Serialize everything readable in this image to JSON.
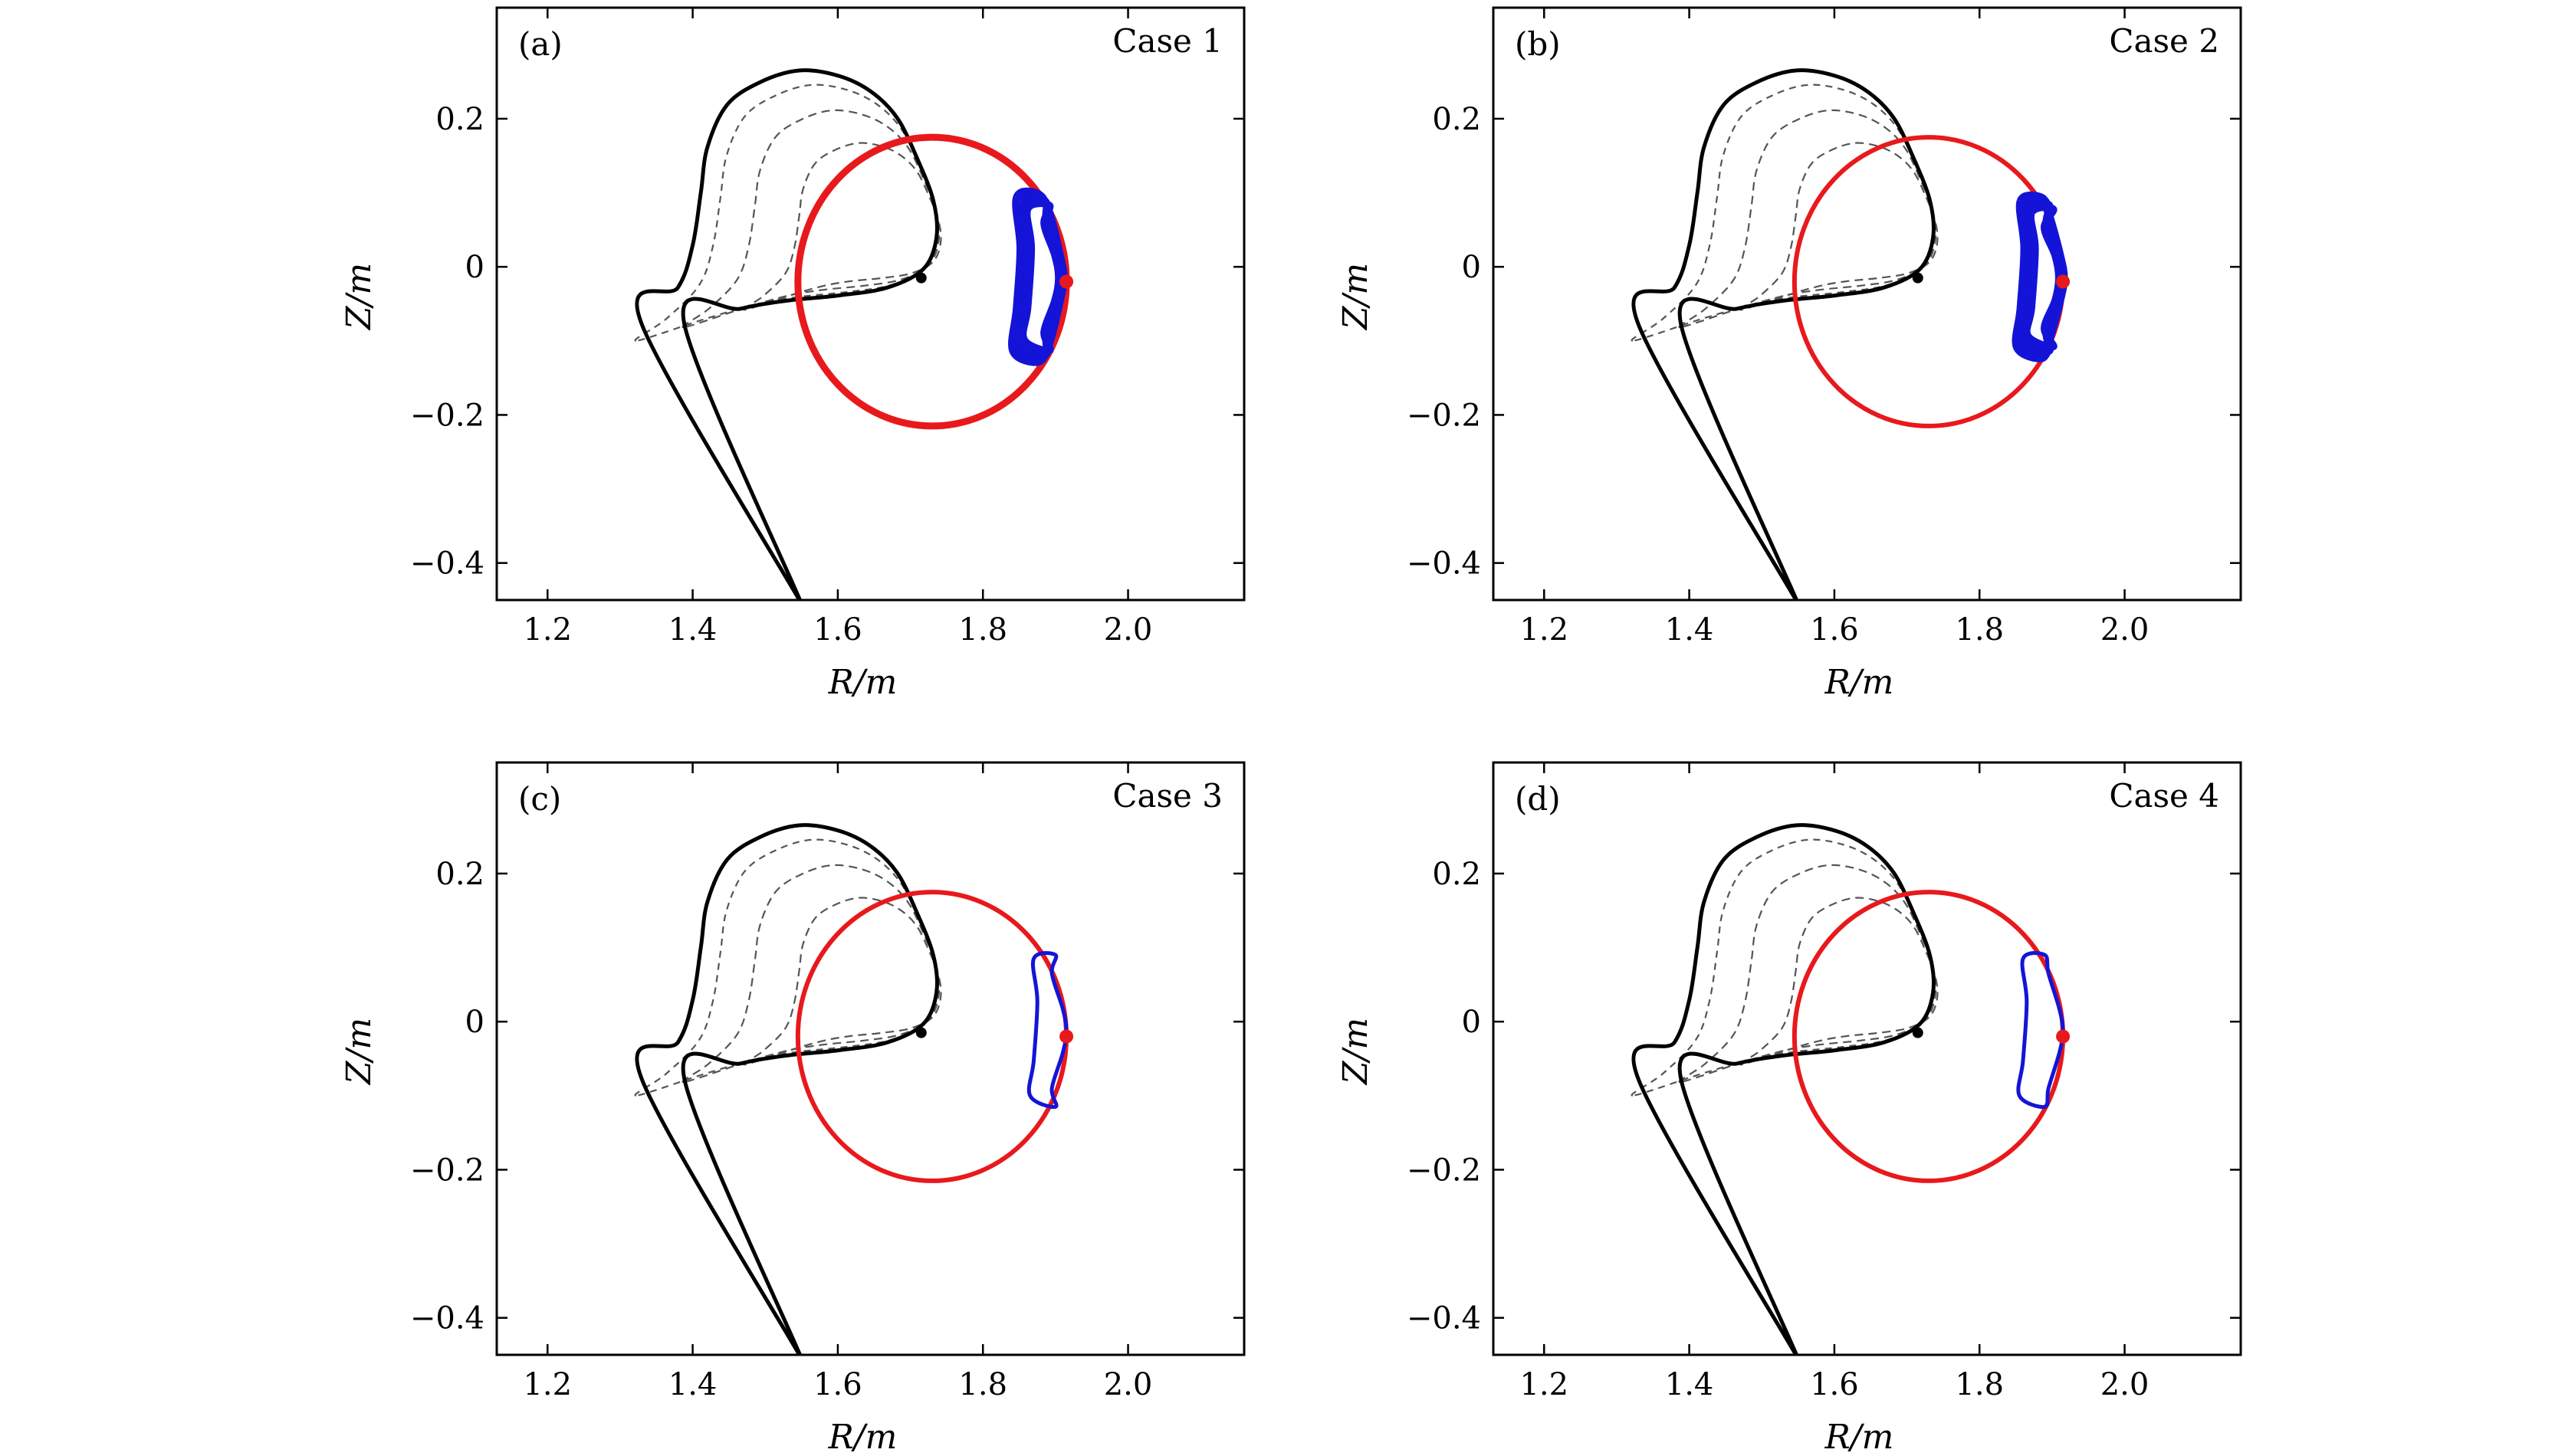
{
  "colors": {
    "boundary": "#000000",
    "flux_surface": "#555555",
    "q_surface": "#e8191c",
    "orbit": "#1414d8",
    "axis": "#000000"
  },
  "chart_data": [
    {
      "type": "line",
      "panel_label": "(a)",
      "case_label": "Case 1",
      "xlabel": "R/m",
      "ylabel": "Z/m",
      "xlim": [
        1.13,
        2.16
      ],
      "ylim": [
        -0.45,
        0.35
      ],
      "xticks": [
        {
          "v": 1.2,
          "label": "1.2"
        },
        {
          "v": 1.4,
          "label": "1.4"
        },
        {
          "v": 1.6,
          "label": "1.6"
        },
        {
          "v": 1.8,
          "label": "1.8"
        },
        {
          "v": 2.0,
          "label": "2.0"
        }
      ],
      "yticks": [
        {
          "v": 0.2,
          "label": "0.2"
        },
        {
          "v": 0,
          "label": "0"
        },
        {
          "v": -0.2,
          "label": "−0.2"
        },
        {
          "v": -0.4,
          "label": "−0.4"
        }
      ],
      "magnetic_axis": {
        "R": 1.715,
        "Z": -0.015
      },
      "q_surface": {
        "R0": 1.73,
        "Z0": -0.02,
        "a": 0.185,
        "b": 0.195
      },
      "orbit": {
        "R_inner": 1.84,
        "R_outer": 1.91,
        "Z_top": 0.09,
        "Z_bottom": -0.12,
        "thick": true
      }
    },
    {
      "type": "line",
      "panel_label": "(b)",
      "case_label": "Case 2",
      "xlabel": "R/m",
      "ylabel": "Z/m",
      "xlim": [
        1.13,
        2.16
      ],
      "ylim": [
        -0.45,
        0.35
      ],
      "xticks": [
        {
          "v": 1.2,
          "label": "1.2"
        },
        {
          "v": 1.4,
          "label": "1.4"
        },
        {
          "v": 1.6,
          "label": "1.6"
        },
        {
          "v": 1.8,
          "label": "1.8"
        },
        {
          "v": 2.0,
          "label": "2.0"
        }
      ],
      "yticks": [
        {
          "v": 0.2,
          "label": "0.2"
        },
        {
          "v": 0,
          "label": "0"
        },
        {
          "v": -0.2,
          "label": "−0.2"
        },
        {
          "v": -0.4,
          "label": "−0.4"
        }
      ],
      "magnetic_axis": {
        "R": 1.715,
        "Z": -0.015
      },
      "q_surface": {
        "R0": 1.73,
        "Z0": -0.02,
        "a": 0.185,
        "b": 0.195
      },
      "orbit": {
        "R_inner": 1.85,
        "R_outer": 1.915,
        "Z_top": 0.085,
        "Z_bottom": -0.115,
        "thick": true
      }
    },
    {
      "type": "line",
      "panel_label": "(c)",
      "case_label": "Case 3",
      "xlabel": "R/m",
      "ylabel": "Z/m",
      "xlim": [
        1.13,
        2.16
      ],
      "ylim": [
        -0.45,
        0.35
      ],
      "xticks": [
        {
          "v": 1.2,
          "label": "1.2"
        },
        {
          "v": 1.4,
          "label": "1.4"
        },
        {
          "v": 1.6,
          "label": "1.6"
        },
        {
          "v": 1.8,
          "label": "1.8"
        },
        {
          "v": 2.0,
          "label": "2.0"
        }
      ],
      "yticks": [
        {
          "v": 0.2,
          "label": "0.2"
        },
        {
          "v": 0,
          "label": "0"
        },
        {
          "v": -0.2,
          "label": "−0.2"
        },
        {
          "v": -0.4,
          "label": "−0.4"
        }
      ],
      "magnetic_axis": {
        "R": 1.715,
        "Z": -0.015
      },
      "q_surface": {
        "R0": 1.73,
        "Z0": -0.02,
        "a": 0.185,
        "b": 0.195
      },
      "orbit": {
        "R_inner": 1.86,
        "R_outer": 1.915,
        "Z_top": 0.085,
        "Z_bottom": -0.11,
        "thick": false
      }
    },
    {
      "type": "line",
      "panel_label": "(d)",
      "case_label": "Case 4",
      "xlabel": "R/m",
      "ylabel": "Z/m",
      "xlim": [
        1.13,
        2.16
      ],
      "ylim": [
        -0.45,
        0.35
      ],
      "xticks": [
        {
          "v": 1.2,
          "label": "1.2"
        },
        {
          "v": 1.4,
          "label": "1.4"
        },
        {
          "v": 1.6,
          "label": "1.6"
        },
        {
          "v": 1.8,
          "label": "1.8"
        },
        {
          "v": 2.0,
          "label": "2.0"
        }
      ],
      "yticks": [
        {
          "v": 0.2,
          "label": "0.2"
        },
        {
          "v": 0,
          "label": "0"
        },
        {
          "v": -0.2,
          "label": "−0.2"
        },
        {
          "v": -0.4,
          "label": "−0.4"
        }
      ],
      "magnetic_axis": {
        "R": 1.715,
        "Z": -0.015
      },
      "q_surface": {
        "R0": 1.73,
        "Z0": -0.02,
        "a": 0.185,
        "b": 0.195
      },
      "orbit": {
        "R_inner": 1.85,
        "R_outer": 1.915,
        "Z_top": 0.085,
        "Z_bottom": -0.11,
        "thick": false
      }
    }
  ]
}
